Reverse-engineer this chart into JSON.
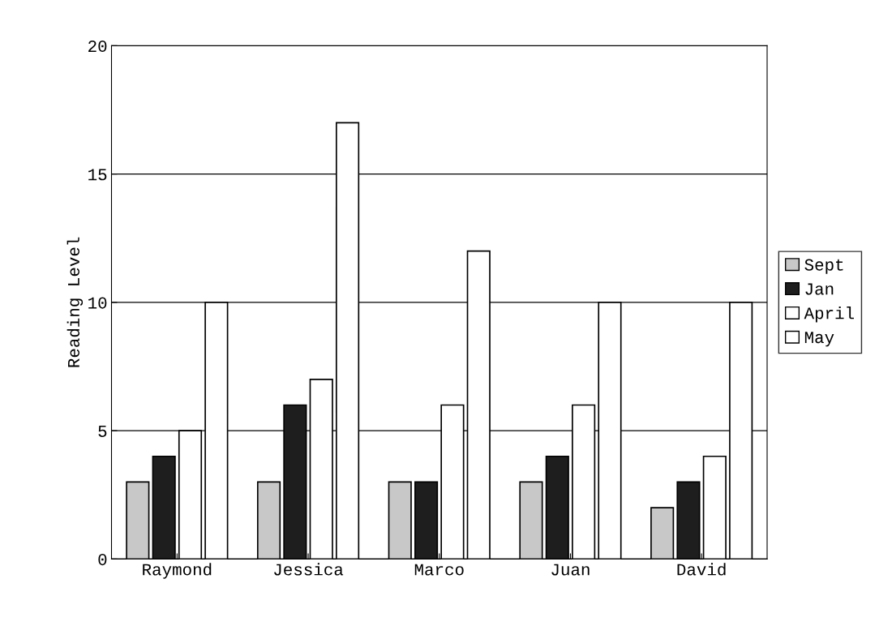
{
  "chart_data": {
    "type": "bar",
    "ylabel": "Reading Level",
    "categories": [
      "Raymond",
      "Jessica",
      "Marco",
      "Juan",
      "David"
    ],
    "series": [
      {
        "name": "Sept",
        "color": "#c8c8c8",
        "values": [
          3,
          3,
          3,
          3,
          2
        ]
      },
      {
        "name": "Jan",
        "color": "#1e1e1e",
        "values": [
          4,
          6,
          3,
          4,
          3
        ]
      },
      {
        "name": "April",
        "color": "#ffffff",
        "values": [
          5,
          7,
          6,
          6,
          4
        ]
      },
      {
        "name": "May",
        "color": "#ffffff",
        "values": [
          10,
          17,
          12,
          10,
          10
        ]
      }
    ],
    "ylim": [
      0,
      20
    ],
    "yticks": [
      0,
      5,
      10,
      15,
      20
    ],
    "grid": "y",
    "legend": "right"
  }
}
